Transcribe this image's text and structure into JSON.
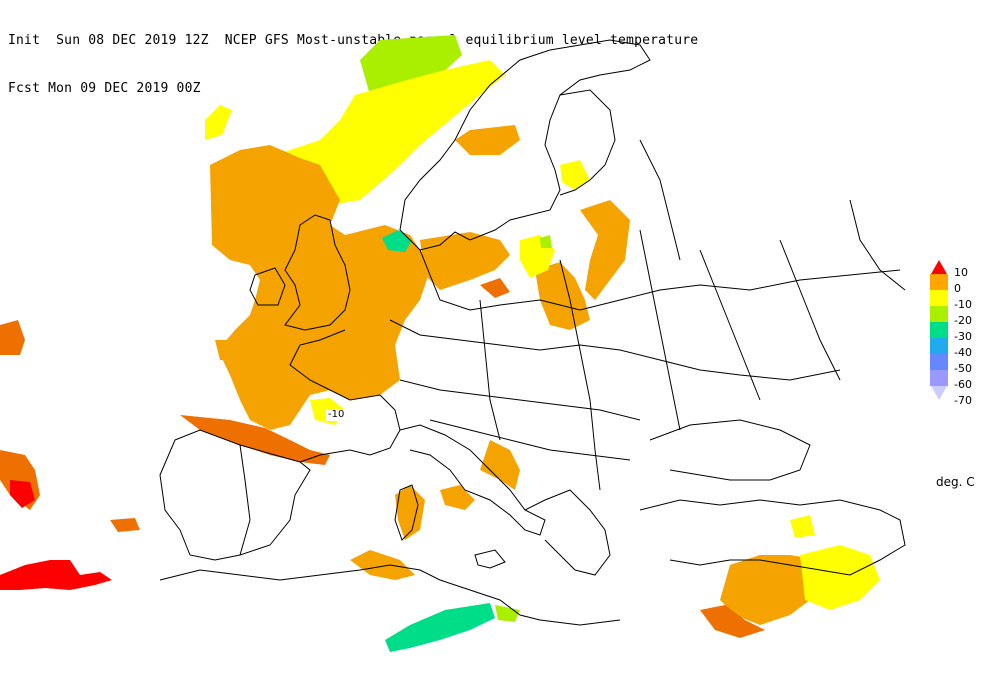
{
  "header": {
    "line1": "Init  Sun 08 DEC 2019 12Z  NCEP GFS Most-unstable parcel equilibrium level temperature",
    "line2": "Fcst Mon 09 DEC 2019 00Z"
  },
  "legend": {
    "items": [
      {
        "label": "10",
        "color": "#ff0000"
      },
      {
        "label": "0",
        "color": "#ffa500"
      },
      {
        "label": "-10",
        "color": "#ffff00"
      },
      {
        "label": "-20",
        "color": "#aaee00"
      },
      {
        "label": "-30",
        "color": "#00dd88"
      },
      {
        "label": "-40",
        "color": "#22aaee"
      },
      {
        "label": "-50",
        "color": "#6688ff"
      },
      {
        "label": "-60",
        "color": "#9999ff"
      },
      {
        "label": "-70",
        "color": "#ccccff"
      }
    ],
    "units": "deg. C"
  },
  "contour_label": "-10",
  "colors": {
    "orange": "#f5a300",
    "dark_orange": "#ee7000",
    "yellow": "#ffff00",
    "yellow_green": "#aaee00",
    "teal": "#00dd88",
    "red": "#ff0000",
    "coast": "#000000"
  }
}
